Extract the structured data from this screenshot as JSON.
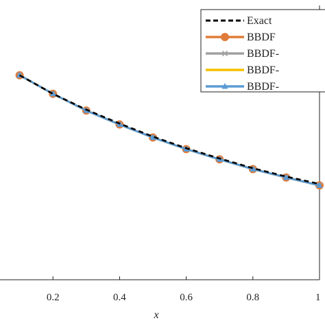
{
  "chart_data": {
    "type": "line",
    "title": "",
    "xlabel": "x",
    "ylabel": "",
    "xlim": [
      0,
      1
    ],
    "ylim": [
      0.08,
      0.375
    ],
    "x_ticks": [
      {
        "value": 0.2,
        "label": "0.2"
      },
      {
        "value": 0.4,
        "label": "0.4"
      },
      {
        "value": 0.6,
        "label": "0.6"
      },
      {
        "value": 0.8,
        "label": "0.8"
      },
      {
        "value": 1.0,
        "label": "1"
      }
    ],
    "grid": false,
    "legend_position": "top-right",
    "x": [
      0.1,
      0.2,
      0.3,
      0.4,
      0.5,
      0.6,
      0.7,
      0.8,
      0.9,
      1.0
    ],
    "series": [
      {
        "name": "Exact",
        "color": "#000000",
        "style": "dashed",
        "marker": "none",
        "values": [
          0.3,
          0.28,
          0.263,
          0.248,
          0.234,
          0.2215,
          0.2105,
          0.2,
          0.191,
          0.183
        ]
      },
      {
        "name": "BBDF",
        "color": "#e07b39",
        "style": "solid",
        "marker": "circle",
        "values": [
          0.3,
          0.28,
          0.262,
          0.247,
          0.233,
          0.2205,
          0.2095,
          0.199,
          0.19,
          0.1815
        ]
      },
      {
        "name": "BBDF-",
        "color": "#a0a0a0",
        "style": "solid",
        "marker": "x",
        "values": [
          0.3,
          0.28,
          0.262,
          0.247,
          0.233,
          0.2205,
          0.2095,
          0.199,
          0.19,
          0.1815
        ]
      },
      {
        "name": "BBDF-",
        "color": "#f5c000",
        "style": "solid",
        "marker": "none",
        "values": [
          0.3,
          0.28,
          0.262,
          0.247,
          0.233,
          0.2205,
          0.2095,
          0.199,
          0.19,
          0.1815
        ]
      },
      {
        "name": "BBDF-",
        "color": "#5b9bd5",
        "style": "solid",
        "marker": "triangle",
        "values": [
          0.3,
          0.28,
          0.262,
          0.247,
          0.233,
          0.2205,
          0.2095,
          0.199,
          0.19,
          0.1815
        ]
      }
    ]
  }
}
